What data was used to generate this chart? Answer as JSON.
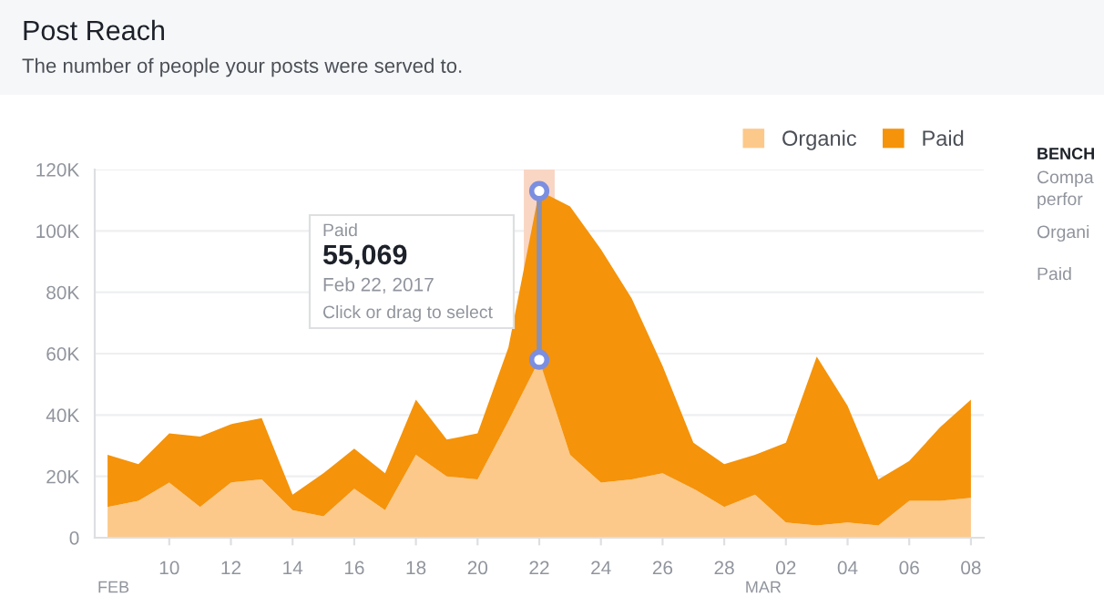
{
  "chart_data": {
    "type": "area",
    "title": "Post Reach",
    "subtitle": "The number of people your posts were served to.",
    "stacked": true,
    "x": [
      "2017-02-08",
      "2017-02-09",
      "2017-02-10",
      "2017-02-11",
      "2017-02-12",
      "2017-02-13",
      "2017-02-14",
      "2017-02-15",
      "2017-02-16",
      "2017-02-17",
      "2017-02-18",
      "2017-02-19",
      "2017-02-20",
      "2017-02-21",
      "2017-02-22",
      "2017-02-23",
      "2017-02-24",
      "2017-02-25",
      "2017-02-26",
      "2017-02-27",
      "2017-02-28",
      "2017-03-01",
      "2017-03-02",
      "2017-03-03",
      "2017-03-04",
      "2017-03-05",
      "2017-03-06",
      "2017-03-07",
      "2017-03-08"
    ],
    "series": [
      {
        "name": "Organic",
        "color": "#fcc98a",
        "values": [
          10000,
          12000,
          18000,
          10000,
          18000,
          19000,
          9000,
          7000,
          16000,
          9000,
          27000,
          20000,
          19000,
          38000,
          58000,
          27000,
          18000,
          19000,
          21000,
          16000,
          10000,
          14000,
          5000,
          4000,
          5000,
          4000,
          12000,
          12000,
          13000
        ]
      },
      {
        "name": "Paid",
        "color": "#f5930a",
        "values": [
          17000,
          12000,
          16000,
          23000,
          19000,
          20000,
          5000,
          14000,
          13000,
          12000,
          18000,
          12000,
          15000,
          24000,
          55069,
          81000,
          76000,
          59000,
          35000,
          15000,
          14000,
          13000,
          26000,
          55000,
          38000,
          15000,
          13000,
          24000,
          32000
        ]
      },
      {
        "type": "line",
        "color": "#8a90b0",
        "marker": "circle",
        "x": [
          "2017-02-22",
          "2017-02-22"
        ],
        "values": [
          113000,
          58000
        ]
      }
    ],
    "xlim": [
      "2017-02-07T14:00",
      "2017-03-08T10:00"
    ],
    "xticks": [
      {
        "value": "2017-02-10",
        "label": "10"
      },
      {
        "value": "2017-02-12",
        "label": "12"
      },
      {
        "value": "2017-02-14",
        "label": "14"
      },
      {
        "value": "2017-02-16",
        "label": "16"
      },
      {
        "value": "2017-02-18",
        "label": "18"
      },
      {
        "value": "2017-02-20",
        "label": "20"
      },
      {
        "value": "2017-02-22",
        "label": "22"
      },
      {
        "value": "2017-02-24",
        "label": "24"
      },
      {
        "value": "2017-02-26",
        "label": "26"
      },
      {
        "value": "2017-02-28",
        "label": "28"
      },
      {
        "value": "2017-03-02",
        "label": "02"
      },
      {
        "value": "2017-03-04",
        "label": "04"
      },
      {
        "value": "2017-03-06",
        "label": "06"
      },
      {
        "value": "2017-03-08",
        "label": "08"
      }
    ],
    "ylim": [
      0,
      120000
    ],
    "yticks": [
      0,
      {
        "value": 20000,
        "label": "20K"
      },
      {
        "value": 40000,
        "label": "40K"
      },
      {
        "value": 60000,
        "label": "60K"
      },
      {
        "value": 80000,
        "label": "80K"
      },
      {
        "value": 100000,
        "label": "100K"
      },
      {
        "value": 120000,
        "label": "120K"
      }
    ],
    "grid": "y",
    "legend": "top right",
    "bands": [
      {
        "axis": "x",
        "from": "2017-02-21T12:00",
        "to": "2017-02-22T12:00",
        "color": "#f9d5c4"
      }
    ],
    "annotations": [
      "Paid",
      "55,069",
      "Feb 22, 2017",
      "Click or drag to select",
      "BENCH",
      "Compa",
      "perfor",
      "Organi",
      "Paid",
      {
        "text": "FEB",
        "x": "2017-02-08",
        "y": 0
      },
      {
        "text": "MAR",
        "x": "2017-03-01",
        "y": 0
      }
    ]
  }
}
